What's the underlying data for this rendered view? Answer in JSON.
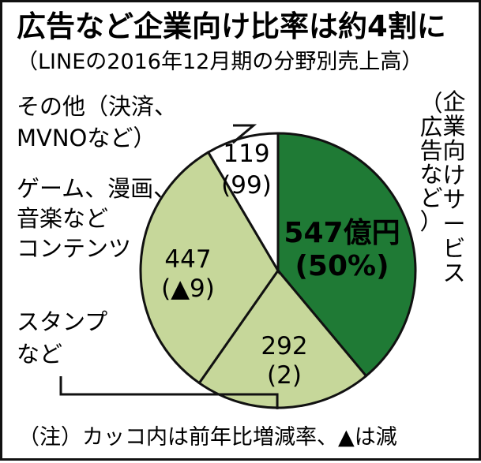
{
  "title": "広告など企業向け比率は約4割に",
  "subtitle": "（LINEの2016年12月期の分野別売上高）",
  "note": "（注）カッコ内は前年比増減率、▲は減",
  "chart_data": {
    "type": "pie",
    "title": "広告など企業向け比率は約4割に",
    "subtitle": "（LINEの2016年12月期の分野別売上高）",
    "unit": "億円",
    "slices": [
      {
        "key": "enterprise",
        "label_lines": [
          "企",
          "業",
          "向",
          "け",
          "サ",
          "ー",
          "ビ",
          "ス"
        ],
        "paren_lines": [
          "（",
          "広",
          "告",
          "な",
          "ど",
          "）"
        ],
        "value": 547,
        "value_text": "547億円",
        "detail": "(50%)",
        "color": "#1f7a35"
      },
      {
        "key": "stamps",
        "label_lines": [
          "スタンプ",
          "など"
        ],
        "value": 292,
        "value_text": "292",
        "detail": "(2)",
        "color": "#c6d79a"
      },
      {
        "key": "content",
        "label_lines": [
          "ゲーム、漫画、",
          "音楽など",
          "コンテンツ"
        ],
        "value": 447,
        "value_text": "447",
        "detail": "(▲9)",
        "color": "#c6d79a"
      },
      {
        "key": "other",
        "label_lines": [
          "その他（決済、",
          "MVNOなど）"
        ],
        "value": 119,
        "value_text": "119",
        "detail": "(99)",
        "color": "#ffffff"
      }
    ]
  }
}
